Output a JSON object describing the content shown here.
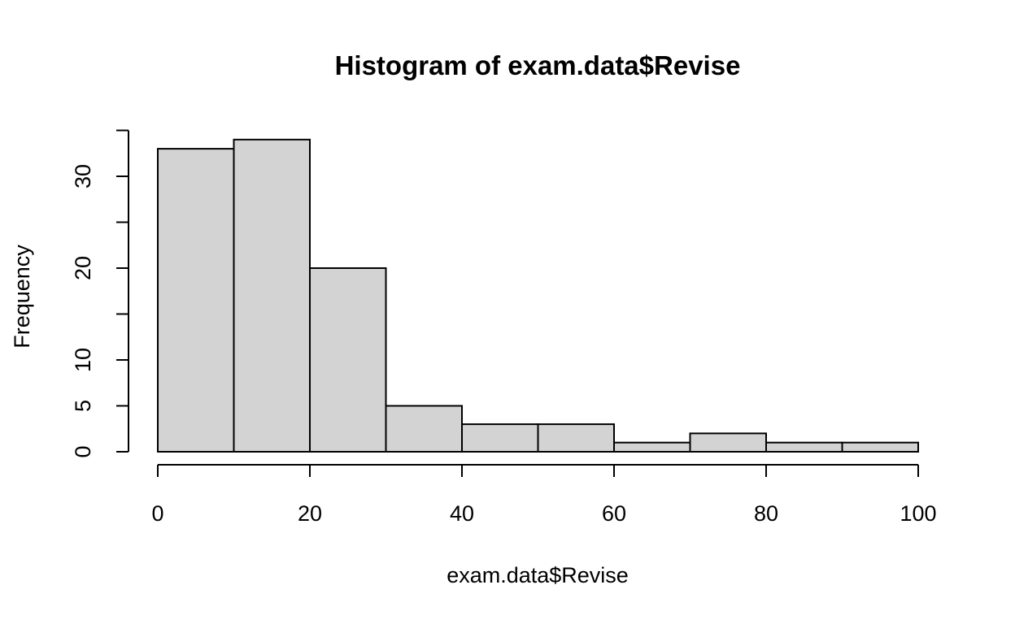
{
  "chart_data": {
    "type": "bar",
    "histogram": true,
    "title": "Histogram of exam.data$Revise",
    "xlabel": "exam.data$Revise",
    "ylabel": "Frequency",
    "bins": [
      {
        "start": 0,
        "end": 10,
        "count": 33
      },
      {
        "start": 10,
        "end": 20,
        "count": 34
      },
      {
        "start": 20,
        "end": 30,
        "count": 20
      },
      {
        "start": 30,
        "end": 40,
        "count": 5
      },
      {
        "start": 40,
        "end": 50,
        "count": 3
      },
      {
        "start": 50,
        "end": 60,
        "count": 3
      },
      {
        "start": 60,
        "end": 70,
        "count": 1
      },
      {
        "start": 70,
        "end": 80,
        "count": 2
      },
      {
        "start": 80,
        "end": 90,
        "count": 1
      },
      {
        "start": 90,
        "end": 100,
        "count": 1
      }
    ],
    "xlim": [
      0,
      100
    ],
    "ylim": [
      0,
      35
    ],
    "x_ticks": [
      0,
      20,
      40,
      60,
      80,
      100
    ],
    "x_tick_labels": [
      "0",
      "20",
      "40",
      "60",
      "80",
      "100"
    ],
    "y_ticks": [
      0,
      5,
      10,
      15,
      20,
      25,
      30,
      35
    ],
    "y_labeled_ticks": [
      0,
      5,
      10,
      20,
      30
    ],
    "y_tick_labels": [
      "0",
      "5",
      "10",
      "20",
      "30"
    ],
    "bar_fill": "#d3d3d3",
    "bar_stroke": "#000000",
    "grid": false,
    "legend": "none"
  }
}
